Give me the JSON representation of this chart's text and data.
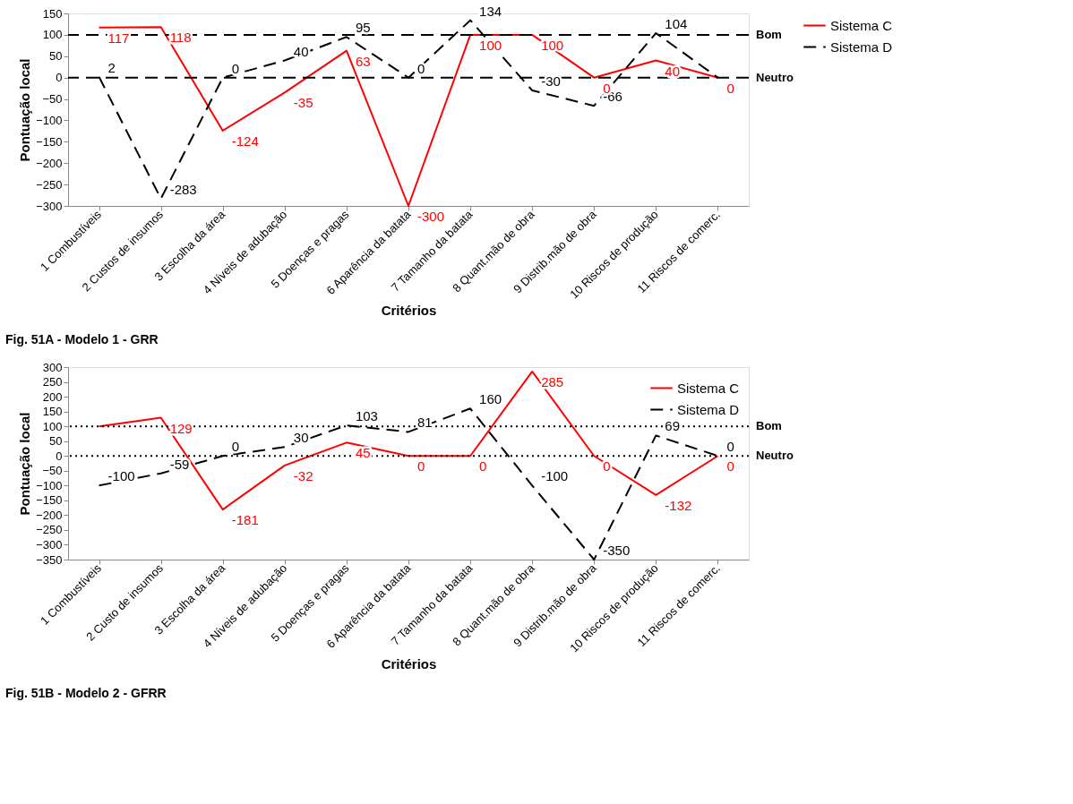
{
  "chart_data": [
    {
      "type": "line",
      "xlabel": "Critérios",
      "ylabel": "Pontuação local",
      "annotations": [
        "Fig. 51A - Modelo 1 - GRR"
      ],
      "categories": [
        "1 Combustíveis",
        "2 Custos de insumos",
        "3 Escolha da área",
        "4 Níveis de adubação",
        "5 Doenças e pragas",
        "6 Aparência da batata",
        "7 Tamanho da batata",
        "8 Quant.mão de obra",
        "9 Distrib.mão de obra",
        "10 Riscos de produção",
        "11 Riscos de comerc."
      ],
      "series": [
        {
          "name": "Sistema C",
          "color": "#ff0000",
          "line_style": "solid",
          "values": [
            117,
            118,
            -124,
            -35,
            63,
            -300,
            100,
            100,
            0,
            40,
            0
          ],
          "value_labels": [
            "117",
            "118",
            "-124",
            "-35",
            "63",
            "-300",
            "100",
            "100",
            "0",
            "40",
            "0"
          ]
        },
        {
          "name": "Sistema D",
          "color": "#000000",
          "line_style": "dashed",
          "values": [
            2,
            -283,
            0,
            40,
            95,
            0,
            134,
            -30,
            -66,
            104,
            0
          ],
          "value_labels": [
            "2",
            "-283",
            "0",
            "40",
            "95",
            "0",
            "134",
            "-30",
            "-66",
            "104",
            null
          ]
        }
      ],
      "ylim": [
        -300,
        150
      ],
      "yticks": [
        -300,
        -250,
        -200,
        -150,
        -100,
        -50,
        0,
        50,
        100,
        150
      ],
      "ref_lines": [
        {
          "axis": "y",
          "value": 100,
          "label": "Bom",
          "line_style": "dashed"
        },
        {
          "axis": "y",
          "value": 0,
          "label": "Neutro",
          "line_style": "dashed"
        }
      ],
      "grid": false,
      "legend": "right"
    },
    {
      "type": "line",
      "xlabel": "Critérios",
      "ylabel": "Pontuação local",
      "annotations": [
        "Fig. 51B - Modelo 2 - GFRR"
      ],
      "categories": [
        "1 Combustíveis",
        "2 Custo de insumos",
        "3 Escolha da área",
        "4 Níveis de adubação",
        "5 Doenças e pragas",
        "6 Aparência da batata",
        "7 Tamanho da batata",
        "8 Quant.mão de obra",
        "9 Distrib.mão de obra",
        "10 Riscos de produção",
        "11 Riscos de comerc."
      ],
      "series": [
        {
          "name": "Sistema C",
          "color": "#ff0000",
          "line_style": "solid",
          "values": [
            100,
            129,
            -181,
            -32,
            45,
            0,
            0,
            285,
            0,
            -132,
            0
          ],
          "value_labels": [
            null,
            "129",
            "-181",
            "-32",
            "45",
            "0",
            "0",
            "285",
            "0",
            "-132",
            "0"
          ]
        },
        {
          "name": "Sistema D",
          "color": "#000000",
          "line_style": "dashed",
          "values": [
            -100,
            -59,
            0,
            30,
            103,
            81,
            160,
            -100,
            -350,
            69,
            0
          ],
          "value_labels": [
            "-100",
            "-59",
            "0",
            "30",
            "103",
            "81",
            "160",
            "-100",
            "-350",
            "69",
            "0"
          ]
        }
      ],
      "ylim": [
        -350,
        300
      ],
      "yticks": [
        -350,
        -300,
        -250,
        -200,
        -150,
        -100,
        -50,
        0,
        50,
        100,
        150,
        200,
        250,
        300
      ],
      "ref_lines": [
        {
          "axis": "y",
          "value": 100,
          "label": "Bom",
          "line_style": "dotted"
        },
        {
          "axis": "y",
          "value": 0,
          "label": "Neutro",
          "line_style": "dotted"
        }
      ],
      "grid": false,
      "legend": "top right"
    }
  ]
}
